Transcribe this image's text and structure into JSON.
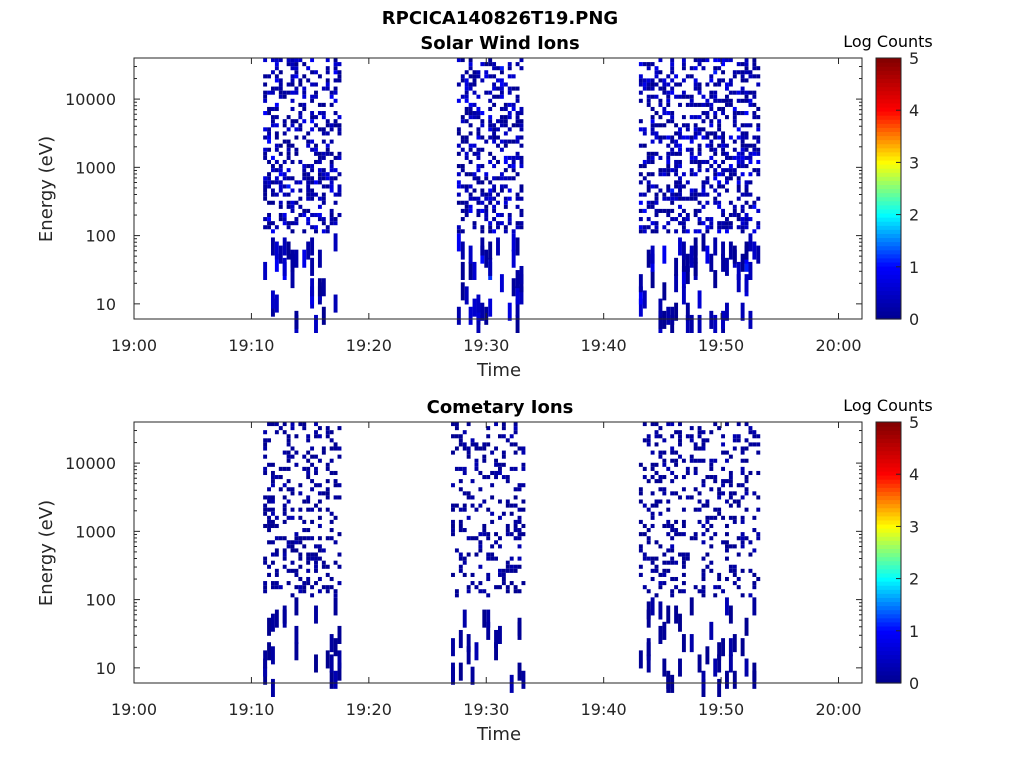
{
  "figure_title": "RPCICA140826T19.PNG",
  "colormap": [
    "#00008f",
    "#0000ff",
    "#00ffff",
    "#ffff00",
    "#ff0000",
    "#800000"
  ],
  "chart_data": [
    {
      "type": "heatmap",
      "title": "Solar Wind Ions",
      "xlabel": "Time",
      "ylabel": "Energy (eV)",
      "x_ticks": [
        "19:00",
        "19:10",
        "19:20",
        "19:30",
        "19:40",
        "19:50",
        "20:00"
      ],
      "xlim": [
        "19:00",
        "20:02"
      ],
      "y_scale": "log",
      "y_ticks": [
        "10",
        "100",
        "1000",
        "10000"
      ],
      "ylim": [
        6,
        40000
      ],
      "colorbar": {
        "label": "Log Counts",
        "ticks": [
          "0",
          "1",
          "2",
          "3",
          "4",
          "5"
        ],
        "range": [
          0,
          5
        ]
      },
      "scan_intervals": [
        [
          "19:11",
          "19:17:30"
        ],
        [
          "19:27:30",
          "19:33"
        ],
        [
          "19:43",
          "19:53"
        ]
      ],
      "peak_log_counts": 1.2,
      "seed": 17,
      "density": 0.42
    },
    {
      "type": "heatmap",
      "title": "Cometary Ions",
      "xlabel": "Time",
      "ylabel": "Energy (eV)",
      "x_ticks": [
        "19:00",
        "19:10",
        "19:20",
        "19:30",
        "19:40",
        "19:50",
        "20:00"
      ],
      "xlim": [
        "19:00",
        "20:02"
      ],
      "y_scale": "log",
      "y_ticks": [
        "10",
        "100",
        "1000",
        "10000"
      ],
      "ylim": [
        6,
        40000
      ],
      "colorbar": {
        "label": "Log Counts",
        "ticks": [
          "0",
          "1",
          "2",
          "3",
          "4",
          "5"
        ],
        "range": [
          0,
          5
        ]
      },
      "scan_intervals": [
        [
          "19:11",
          "19:17:30"
        ],
        [
          "19:27",
          "19:33"
        ],
        [
          "19:43",
          "19:53"
        ]
      ],
      "peak_log_counts": 0.4,
      "seed": 91,
      "density": 0.28
    }
  ]
}
